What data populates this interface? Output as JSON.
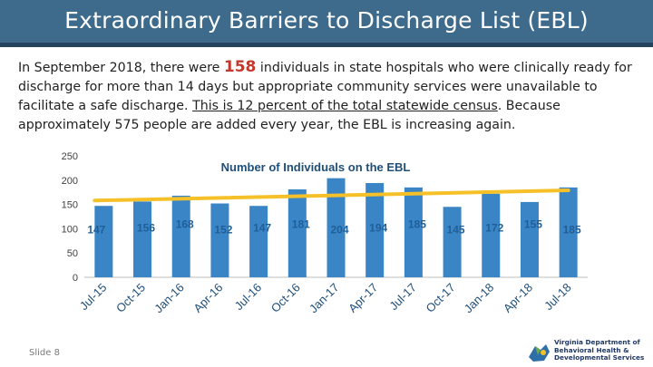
{
  "header": {
    "title": "Extraordinary Barriers to Discharge List (EBL)"
  },
  "intro": {
    "part1": "In September 2018, there were ",
    "highlight": "158",
    "part2": " individuals in state hospitals who were clinically ready for discharge for more than 14 days but appropriate community services were unavailable to facilitate a safe discharge. ",
    "underlined": "This is 12 percent of the total statewide census",
    "part3": ". Because approximately 575 people are added every year, the EBL is increasing again."
  },
  "chart_data": {
    "type": "bar",
    "title": "Number of Individuals on the EBL",
    "categories": [
      "Jul-15",
      "Oct-15",
      "Jan-16",
      "Apr-16",
      "Jul-16",
      "Oct-16",
      "Jan-17",
      "Apr-17",
      "Jul-17",
      "Oct-17",
      "Jan-18",
      "Apr-18",
      "Jul-18"
    ],
    "values": [
      147,
      156,
      168,
      152,
      147,
      181,
      204,
      194,
      185,
      145,
      172,
      155,
      185
    ],
    "trendline": {
      "start": 158,
      "end": 179
    },
    "yticks": [
      0,
      50,
      100,
      150,
      200,
      250
    ],
    "ylim": [
      0,
      250
    ],
    "xlabel": "",
    "ylabel": "",
    "grid": false,
    "colors": {
      "bar": "#3a85c6",
      "trend": "#f5c028",
      "label": "#1f5f99"
    }
  },
  "footer": {
    "slide_label": "Slide 8",
    "org_line1": "Virginia Department of",
    "org_line2": "Behavioral Health &",
    "org_line3": "Developmental Services"
  },
  "colors": {
    "title_bar": "#3e6b8c",
    "highlight": "#c0392b"
  }
}
